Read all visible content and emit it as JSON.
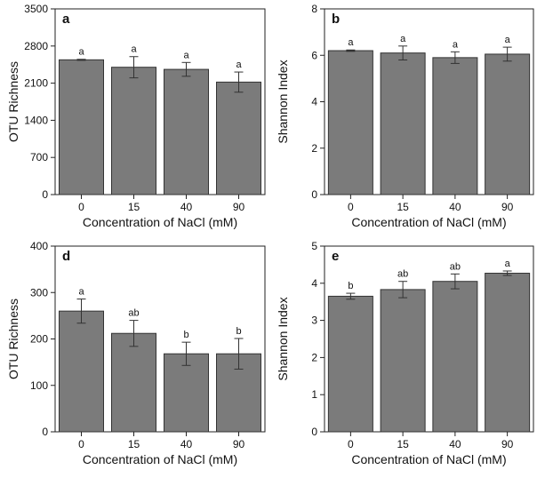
{
  "chart_data": [
    {
      "type": "bar",
      "panel": "a",
      "categories": [
        "0",
        "15",
        "40",
        "90"
      ],
      "values": [
        2540,
        2400,
        2360,
        2120
      ],
      "errors": [
        10,
        200,
        130,
        190
      ],
      "significance": [
        "a",
        "a",
        "a",
        "a"
      ],
      "xlabel": "Concentration of NaCl (mM)",
      "ylabel": "OTU Richness",
      "ylim": [
        0,
        3500
      ],
      "yticks": [
        "0",
        "700",
        "1400",
        "2100",
        "2800",
        "3500"
      ]
    },
    {
      "type": "bar",
      "panel": "b",
      "categories": [
        "0",
        "15",
        "40",
        "90"
      ],
      "values": [
        6.2,
        6.1,
        5.9,
        6.05
      ],
      "errors": [
        0.03,
        0.3,
        0.25,
        0.3
      ],
      "significance": [
        "a",
        "a",
        "a",
        "a"
      ],
      "xlabel": "Concentration of NaCl (mM)",
      "ylabel": "Shannon Index",
      "ylim": [
        0,
        8
      ],
      "yticks": [
        "0",
        "2",
        "4",
        "6",
        "8"
      ]
    },
    {
      "type": "bar",
      "panel": "d",
      "categories": [
        "0",
        "15",
        "40",
        "90"
      ],
      "values": [
        260,
        212,
        168,
        168
      ],
      "errors": [
        26,
        28,
        25,
        33
      ],
      "significance": [
        "a",
        "ab",
        "b",
        "b"
      ],
      "xlabel": "Concentration of NaCl (mM)",
      "ylabel": "OTU Richness",
      "ylim": [
        0,
        400
      ],
      "yticks": [
        "0",
        "100",
        "200",
        "300",
        "400"
      ]
    },
    {
      "type": "bar",
      "panel": "e",
      "categories": [
        "0",
        "15",
        "40",
        "90"
      ],
      "values": [
        3.65,
        3.83,
        4.05,
        4.27
      ],
      "errors": [
        0.08,
        0.22,
        0.2,
        0.06
      ],
      "significance": [
        "b",
        "ab",
        "ab",
        "a"
      ],
      "xlabel": "Concentration of NaCl (mM)",
      "ylabel": "Shannon Index",
      "ylim": [
        0,
        5
      ],
      "yticks": [
        "0",
        "1",
        "2",
        "3",
        "4",
        "5"
      ]
    }
  ]
}
